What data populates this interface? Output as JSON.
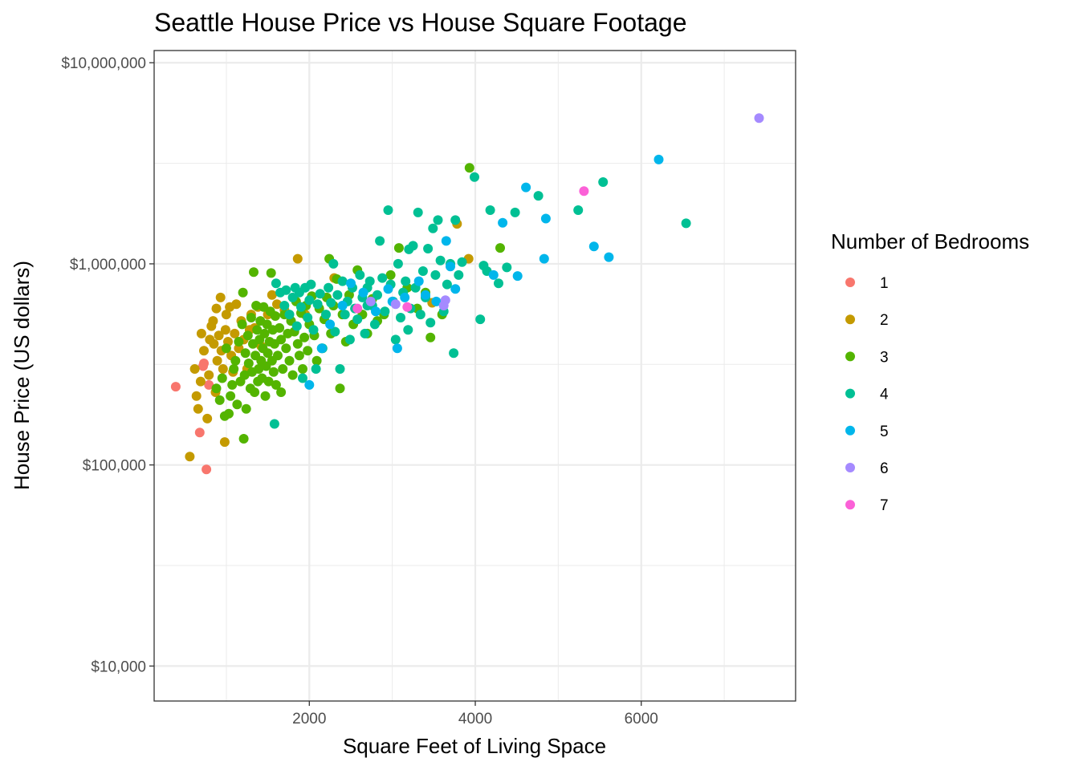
{
  "chart_data": {
    "type": "scatter",
    "title": "Seattle House Price vs House Square Footage",
    "xlabel": "Square Feet of Living Space",
    "ylabel": "House Price (US dollars)",
    "x_scale": "linear",
    "y_scale": "log10",
    "xlim": [
      130,
      7860
    ],
    "ylim": [
      6700,
      11500000
    ],
    "x_ticks": [
      2000,
      4000,
      6000
    ],
    "x_minor_ticks": [
      1000,
      3000,
      5000,
      7000
    ],
    "y_ticks": [
      10000,
      100000,
      1000000,
      10000000
    ],
    "y_tick_labels": [
      "$10,000",
      "$100,000",
      "$1,000,000",
      "$10,000,000"
    ],
    "y_minor_ticks": [
      31623,
      316228,
      3162278
    ],
    "grid": true,
    "legend": {
      "title": "Number of Bedrooms",
      "position": "right"
    },
    "series": [
      {
        "name": "1",
        "color": "#F8766D",
        "points": [
          [
            390,
            245000
          ],
          [
            680,
            145000
          ],
          [
            730,
            320000
          ],
          [
            760,
            95000
          ],
          [
            790,
            250000
          ],
          [
            720,
            310000
          ]
        ]
      },
      {
        "name": "2",
        "color": "#C49A00",
        "points": [
          [
            560,
            110000
          ],
          [
            620,
            300000
          ],
          [
            640,
            220000
          ],
          [
            660,
            190000
          ],
          [
            690,
            260000
          ],
          [
            700,
            450000
          ],
          [
            730,
            370000
          ],
          [
            770,
            170000
          ],
          [
            790,
            280000
          ],
          [
            800,
            420000
          ],
          [
            820,
            490000
          ],
          [
            840,
            520000
          ],
          [
            850,
            400000
          ],
          [
            870,
            230000
          ],
          [
            880,
            600000
          ],
          [
            890,
            330000
          ],
          [
            910,
            440000
          ],
          [
            930,
            680000
          ],
          [
            940,
            370000
          ],
          [
            960,
            300000
          ],
          [
            980,
            130000
          ],
          [
            990,
            470000
          ],
          [
            1000,
            560000
          ],
          [
            1020,
            410000
          ],
          [
            1040,
            610000
          ],
          [
            1060,
            350000
          ],
          [
            1080,
            290000
          ],
          [
            1100,
            450000
          ],
          [
            1120,
            630000
          ],
          [
            1150,
            380000
          ],
          [
            1180,
            520000
          ],
          [
            1210,
            420000
          ],
          [
            1250,
            300000
          ],
          [
            1280,
            470000
          ],
          [
            1300,
            560000
          ],
          [
            1340,
            480000
          ],
          [
            1380,
            610000
          ],
          [
            1420,
            390000
          ],
          [
            1500,
            560000
          ],
          [
            1550,
            700000
          ],
          [
            1610,
            630000
          ],
          [
            1700,
            590000
          ],
          [
            1860,
            1060000
          ],
          [
            3480,
            640000
          ],
          [
            3780,
            1580000
          ],
          [
            3920,
            1060000
          ],
          [
            2300,
            850000
          ],
          [
            1950,
            560000
          ]
        ]
      },
      {
        "name": "3",
        "color": "#53B400",
        "points": [
          [
            880,
            240000
          ],
          [
            920,
            210000
          ],
          [
            950,
            270000
          ],
          [
            980,
            175000
          ],
          [
            1000,
            380000
          ],
          [
            1030,
            180000
          ],
          [
            1050,
            220000
          ],
          [
            1070,
            250000
          ],
          [
            1090,
            300000
          ],
          [
            1110,
            330000
          ],
          [
            1130,
            200000
          ],
          [
            1150,
            410000
          ],
          [
            1170,
            260000
          ],
          [
            1190,
            500000
          ],
          [
            1200,
            720000
          ],
          [
            1210,
            135000
          ],
          [
            1220,
            280000
          ],
          [
            1230,
            360000
          ],
          [
            1240,
            190000
          ],
          [
            1260,
            440000
          ],
          [
            1270,
            320000
          ],
          [
            1290,
            240000
          ],
          [
            1300,
            540000
          ],
          [
            1310,
            290000
          ],
          [
            1320,
            400000
          ],
          [
            1330,
            910000
          ],
          [
            1340,
            230000
          ],
          [
            1350,
            350000
          ],
          [
            1360,
            620000
          ],
          [
            1370,
            470000
          ],
          [
            1380,
            260000
          ],
          [
            1390,
            300000
          ],
          [
            1400,
            420000
          ],
          [
            1410,
            520000
          ],
          [
            1420,
            330000
          ],
          [
            1430,
            270000
          ],
          [
            1440,
            380000
          ],
          [
            1450,
            610000
          ],
          [
            1460,
            450000
          ],
          [
            1470,
            220000
          ],
          [
            1480,
            310000
          ],
          [
            1490,
            500000
          ],
          [
            1500,
            360000
          ],
          [
            1510,
            260000
          ],
          [
            1520,
            410000
          ],
          [
            1530,
            580000
          ],
          [
            1540,
            900000
          ],
          [
            1550,
            330000
          ],
          [
            1560,
            470000
          ],
          [
            1570,
            290000
          ],
          [
            1580,
            400000
          ],
          [
            1590,
            550000
          ],
          [
            1600,
            250000
          ],
          [
            1620,
            350000
          ],
          [
            1640,
            480000
          ],
          [
            1660,
            420000
          ],
          [
            1680,
            300000
          ],
          [
            1700,
            560000
          ],
          [
            1720,
            380000
          ],
          [
            1740,
            450000
          ],
          [
            1760,
            330000
          ],
          [
            1780,
            520000
          ],
          [
            1800,
            280000
          ],
          [
            1820,
            460000
          ],
          [
            1840,
            650000
          ],
          [
            1860,
            400000
          ],
          [
            1880,
            350000
          ],
          [
            1900,
            570000
          ],
          [
            1920,
            300000
          ],
          [
            1940,
            430000
          ],
          [
            1960,
            620000
          ],
          [
            1980,
            370000
          ],
          [
            2000,
            500000
          ],
          [
            2030,
            690000
          ],
          [
            2060,
            440000
          ],
          [
            2090,
            330000
          ],
          [
            2120,
            600000
          ],
          [
            2150,
            380000
          ],
          [
            2180,
            530000
          ],
          [
            2210,
            680000
          ],
          [
            2240,
            1060000
          ],
          [
            2260,
            450000
          ],
          [
            2290,
            620000
          ],
          [
            2330,
            840000
          ],
          [
            2370,
            240000
          ],
          [
            2400,
            560000
          ],
          [
            2440,
            410000
          ],
          [
            2480,
            700000
          ],
          [
            2530,
            500000
          ],
          [
            2580,
            930000
          ],
          [
            2640,
            560000
          ],
          [
            2700,
            450000
          ],
          [
            2760,
            670000
          ],
          [
            2820,
            520000
          ],
          [
            2900,
            560000
          ],
          [
            2980,
            880000
          ],
          [
            3080,
            1200000
          ],
          [
            3180,
            760000
          ],
          [
            3300,
            600000
          ],
          [
            3400,
            720000
          ],
          [
            3460,
            430000
          ],
          [
            3930,
            3000000
          ],
          [
            4300,
            1200000
          ],
          [
            3600,
            560000
          ],
          [
            1660,
            230000
          ]
        ]
      },
      {
        "name": "4",
        "color": "#00C094",
        "points": [
          [
            1580,
            160000
          ],
          [
            1600,
            800000
          ],
          [
            1650,
            720000
          ],
          [
            1700,
            620000
          ],
          [
            1720,
            740000
          ],
          [
            1760,
            560000
          ],
          [
            1800,
            680000
          ],
          [
            1830,
            760000
          ],
          [
            1850,
            490000
          ],
          [
            1880,
            720000
          ],
          [
            1900,
            610000
          ],
          [
            1920,
            270000
          ],
          [
            1950,
            760000
          ],
          [
            1980,
            540000
          ],
          [
            2000,
            660000
          ],
          [
            2020,
            790000
          ],
          [
            2050,
            470000
          ],
          [
            2080,
            300000
          ],
          [
            2100,
            630000
          ],
          [
            2130,
            710000
          ],
          [
            2160,
            380000
          ],
          [
            2200,
            560000
          ],
          [
            2230,
            760000
          ],
          [
            2260,
            640000
          ],
          [
            2290,
            1000000
          ],
          [
            2310,
            460000
          ],
          [
            2340,
            700000
          ],
          [
            2370,
            300000
          ],
          [
            2400,
            820000
          ],
          [
            2430,
            560000
          ],
          [
            2460,
            650000
          ],
          [
            2490,
            420000
          ],
          [
            2520,
            760000
          ],
          [
            2550,
            600000
          ],
          [
            2580,
            530000
          ],
          [
            2610,
            880000
          ],
          [
            2640,
            680000
          ],
          [
            2670,
            450000
          ],
          [
            2700,
            760000
          ],
          [
            2730,
            820000
          ],
          [
            2760,
            620000
          ],
          [
            2790,
            500000
          ],
          [
            2820,
            700000
          ],
          [
            2850,
            1300000
          ],
          [
            2880,
            850000
          ],
          [
            2910,
            580000
          ],
          [
            2950,
            1850000
          ],
          [
            2980,
            790000
          ],
          [
            3010,
            650000
          ],
          [
            3040,
            420000
          ],
          [
            3070,
            1000000
          ],
          [
            3100,
            540000
          ],
          [
            3130,
            720000
          ],
          [
            3160,
            820000
          ],
          [
            3190,
            470000
          ],
          [
            3220,
            600000
          ],
          [
            3250,
            1230000
          ],
          [
            3280,
            760000
          ],
          [
            3310,
            1800000
          ],
          [
            3340,
            560000
          ],
          [
            3370,
            920000
          ],
          [
            3400,
            680000
          ],
          [
            3430,
            1190000
          ],
          [
            3460,
            510000
          ],
          [
            3490,
            1500000
          ],
          [
            3520,
            880000
          ],
          [
            3550,
            1650000
          ],
          [
            3580,
            1040000
          ],
          [
            3620,
            580000
          ],
          [
            3660,
            790000
          ],
          [
            3700,
            1000000
          ],
          [
            3740,
            360000
          ],
          [
            3760,
            1650000
          ],
          [
            3800,
            880000
          ],
          [
            3840,
            1020000
          ],
          [
            3990,
            2700000
          ],
          [
            4060,
            530000
          ],
          [
            4100,
            980000
          ],
          [
            4140,
            920000
          ],
          [
            4180,
            1850000
          ],
          [
            4280,
            800000
          ],
          [
            4380,
            960000
          ],
          [
            4480,
            1800000
          ],
          [
            4760,
            2180000
          ],
          [
            5240,
            1850000
          ],
          [
            5540,
            2550000
          ],
          [
            6540,
            1590000
          ],
          [
            3200,
            1180000
          ],
          [
            2700,
            620000
          ]
        ]
      },
      {
        "name": "5",
        "color": "#00B6EB",
        "points": [
          [
            2000,
            250000
          ],
          [
            2150,
            380000
          ],
          [
            2250,
            500000
          ],
          [
            2400,
            620000
          ],
          [
            2500,
            800000
          ],
          [
            2650,
            720000
          ],
          [
            2800,
            580000
          ],
          [
            2950,
            750000
          ],
          [
            3000,
            650000
          ],
          [
            3060,
            380000
          ],
          [
            3150,
            680000
          ],
          [
            3320,
            820000
          ],
          [
            3400,
            700000
          ],
          [
            3530,
            650000
          ],
          [
            3650,
            1300000
          ],
          [
            3700,
            970000
          ],
          [
            3760,
            750000
          ],
          [
            4220,
            880000
          ],
          [
            4330,
            1600000
          ],
          [
            4510,
            870000
          ],
          [
            4610,
            2400000
          ],
          [
            4830,
            1060000
          ],
          [
            4850,
            1680000
          ],
          [
            5430,
            1220000
          ],
          [
            5610,
            1080000
          ],
          [
            6210,
            3300000
          ]
        ]
      },
      {
        "name": "6",
        "color": "#A58AFF",
        "points": [
          [
            2740,
            650000
          ],
          [
            3040,
            630000
          ],
          [
            3620,
            620000
          ],
          [
            3640,
            660000
          ],
          [
            7420,
            5300000
          ]
        ]
      },
      {
        "name": "7",
        "color": "#FB61D7",
        "points": [
          [
            2580,
            600000
          ],
          [
            3180,
            610000
          ],
          [
            5310,
            2300000
          ]
        ]
      }
    ]
  }
}
